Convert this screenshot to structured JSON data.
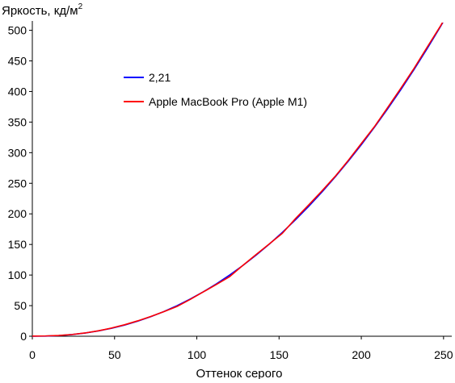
{
  "chart_data": {
    "type": "line",
    "title": "",
    "ylabel": "Яркость, кд/м",
    "ylabel_sup": "2",
    "xlabel": "Оттенок серого",
    "xlim": [
      0,
      255
    ],
    "ylim": [
      0,
      510
    ],
    "xticks": [
      0,
      50,
      100,
      150,
      200,
      250
    ],
    "yticks": [
      0,
      50,
      100,
      150,
      200,
      250,
      300,
      350,
      400,
      450,
      500
    ],
    "grid": false,
    "legend_position": "upper-left",
    "series": [
      {
        "name": "2,21",
        "color": "#0000ff",
        "x": [
          0,
          8,
          16,
          24,
          32,
          40,
          48,
          56,
          64,
          72,
          80,
          88,
          96,
          104,
          112,
          120,
          128,
          136,
          144,
          152,
          160,
          168,
          176,
          184,
          192,
          200,
          208,
          216,
          224,
          232,
          240,
          248,
          255
        ],
        "y": [
          0,
          0.2,
          1.1,
          2.7,
          5.2,
          8.6,
          12.9,
          18.2,
          24.5,
          31.9,
          40.4,
          50,
          60.8,
          72.7,
          85.8,
          100.1,
          115.6,
          132.4,
          150.4,
          169.7,
          190.3,
          212.2,
          235.4,
          259.9,
          285.8,
          313,
          341.6,
          371.6,
          402.9,
          435.7,
          469.9,
          505.5,
          538
        ]
      },
      {
        "name": "Apple MacBook Pro (Apple M1)",
        "color": "#ff0000",
        "x": [
          0,
          8,
          16,
          24,
          32,
          40,
          48,
          56,
          64,
          72,
          80,
          88,
          96,
          104,
          112,
          120,
          128,
          136,
          144,
          152,
          160,
          168,
          176,
          184,
          192,
          200,
          208,
          216,
          224,
          232,
          240,
          248,
          255
        ],
        "y": [
          0.3,
          0.5,
          1.2,
          2.8,
          5.3,
          8.8,
          13.3,
          18.7,
          25.1,
          32.3,
          40.2,
          48.7,
          60.2,
          72.5,
          84.7,
          97.5,
          115.8,
          133.5,
          150.7,
          168.2,
          192.3,
          214.6,
          237.3,
          261,
          287.2,
          314.9,
          342.6,
          373.7,
          405.1,
          437.5,
          472.3,
          506.4,
          539
        ]
      }
    ]
  }
}
